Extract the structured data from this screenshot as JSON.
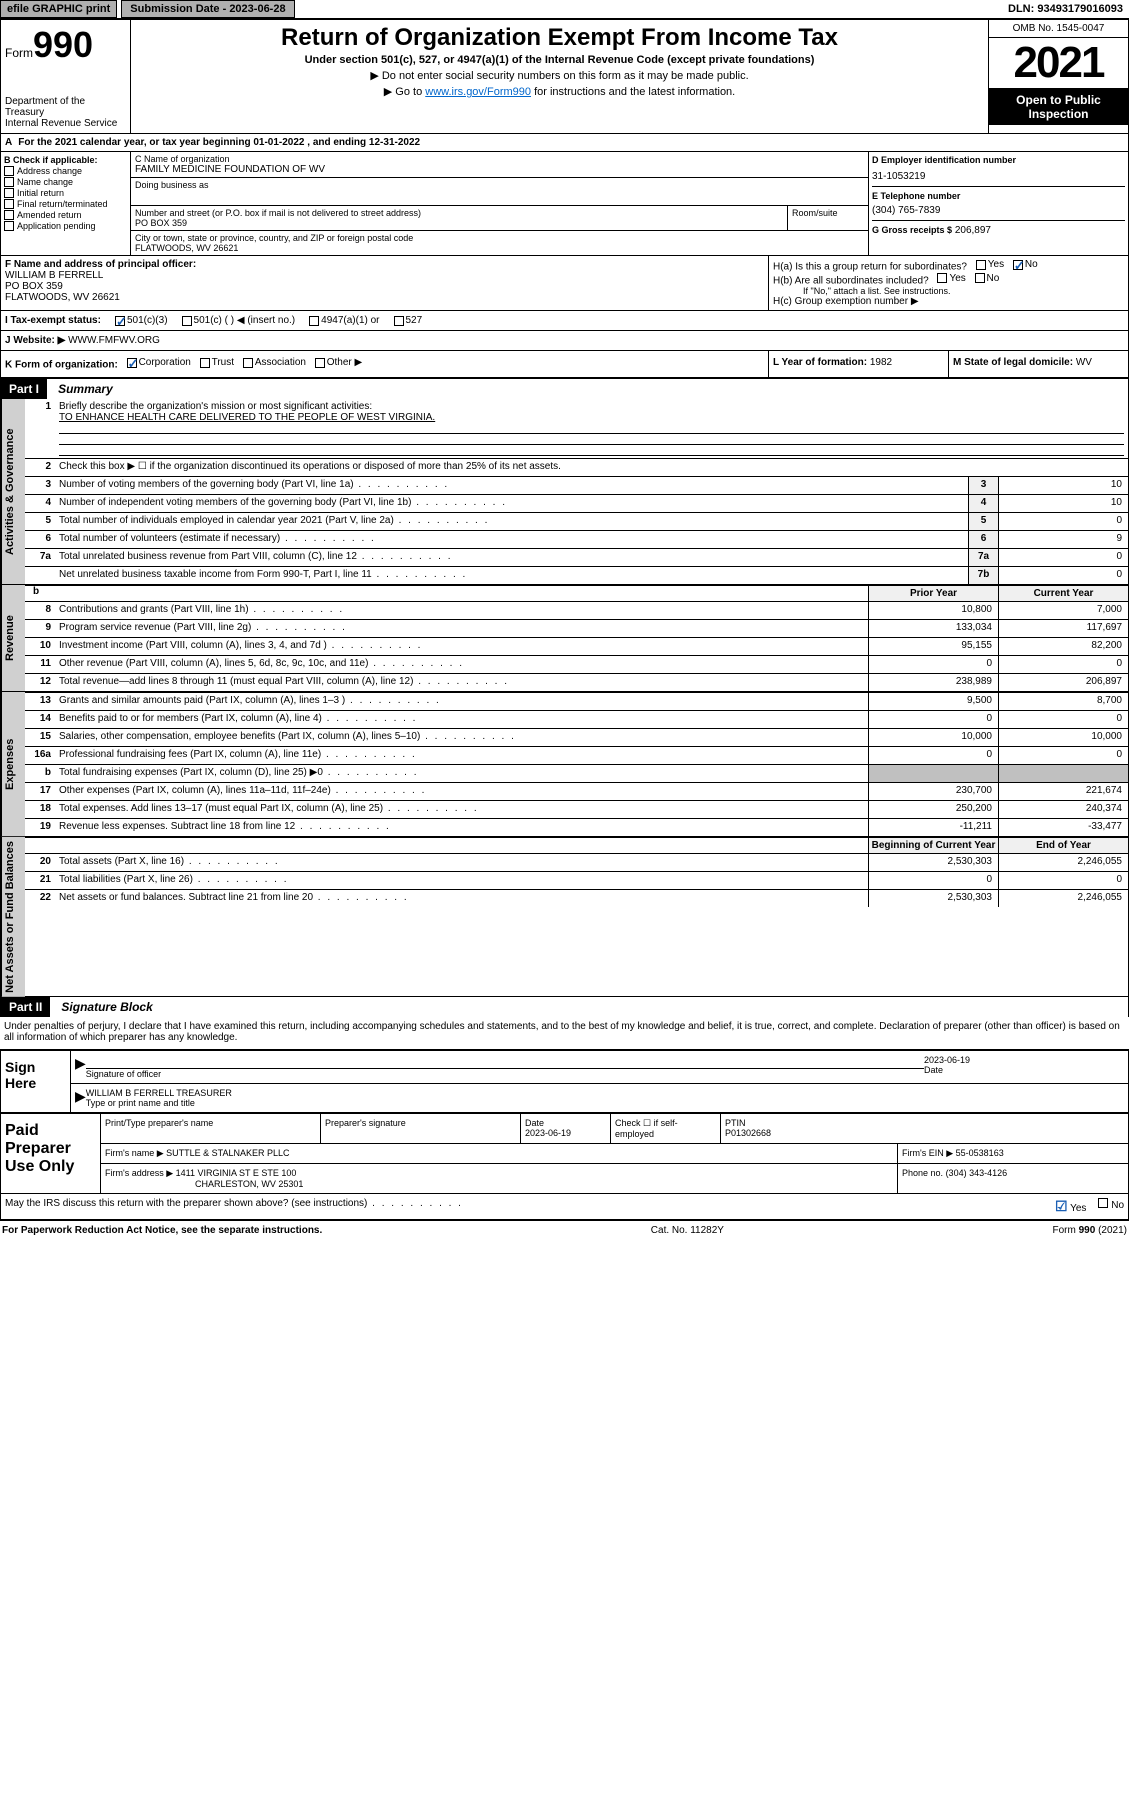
{
  "top": {
    "efile": "efile GRAPHIC print",
    "submission": "Submission Date - 2023-06-28",
    "dln": "DLN: 93493179016093"
  },
  "header": {
    "form_prefix": "Form",
    "form_num": "990",
    "dept": "Department of the Treasury",
    "irs": "Internal Revenue Service",
    "title": "Return of Organization Exempt From Income Tax",
    "subtitle": "Under section 501(c), 527, or 4947(a)(1) of the Internal Revenue Code (except private foundations)",
    "note1": "▶ Do not enter social security numbers on this form as it may be made public.",
    "note2_pre": "▶ Go to ",
    "note2_link": "www.irs.gov/Form990",
    "note2_post": " for instructions and the latest information.",
    "omb": "OMB No. 1545-0047",
    "year": "2021",
    "open_pub": "Open to Public Inspection"
  },
  "rowA": {
    "text": "For the 2021 calendar year, or tax year beginning 01-01-2022   , and ending 12-31-2022"
  },
  "colB": {
    "label": "B Check if applicable:",
    "opts": [
      "Address change",
      "Name change",
      "Initial return",
      "Final return/terminated",
      "Amended return",
      "Application pending"
    ]
  },
  "orgC": {
    "name_lbl": "C Name of organization",
    "name": "FAMILY MEDICINE FOUNDATION OF WV",
    "dba_lbl": "Doing business as",
    "addr_lbl": "Number and street (or P.O. box if mail is not delivered to street address)",
    "room_lbl": "Room/suite",
    "addr": "PO BOX 359",
    "city_lbl": "City or town, state or province, country, and ZIP or foreign postal code",
    "city": "FLATWOODS, WV  26621"
  },
  "colD": {
    "ein_lbl": "D Employer identification number",
    "ein": "31-1053219",
    "tel_lbl": "E Telephone number",
    "tel": "(304) 765-7839",
    "gross_lbl": "G Gross receipts $",
    "gross": "206,897"
  },
  "rowF": {
    "f_lbl": "F  Name and address of principal officer:",
    "name": "WILLIAM B FERRELL",
    "addr1": "PO BOX 359",
    "addr2": "FLATWOODS, WV  26621",
    "ha": "H(a)  Is this a group return for subordinates?",
    "hb": "H(b)  Are all subordinates included?",
    "hb_note": "If \"No,\" attach a list. See instructions.",
    "hc": "H(c)  Group exemption number ▶"
  },
  "status": {
    "i_lbl": "I    Tax-exempt status:",
    "i_501c3": "501(c)(3)",
    "i_501c": "501(c) (  ) ◀ (insert no.)",
    "i_4947": "4947(a)(1) or",
    "i_527": "527",
    "j_lbl": "J   Website: ▶",
    "website": "WWW.FMFWV.ORG"
  },
  "kform": {
    "k_lbl": "K Form of organization:",
    "corp": "Corporation",
    "trust": "Trust",
    "assoc": "Association",
    "other": "Other ▶",
    "l_lbl": "L Year of formation:",
    "l_val": "1982",
    "m_lbl": "M State of legal domicile:",
    "m_val": "WV"
  },
  "part1": {
    "label": "Part I",
    "title": "Summary",
    "vtab_gov": "Activities & Governance",
    "vtab_rev": "Revenue",
    "vtab_exp": "Expenses",
    "vtab_net": "Net Assets or Fund Balances",
    "l1_lbl": "Briefly describe the organization's mission or most significant activities:",
    "l1_val": "TO ENHANCE HEALTH CARE DELIVERED TO THE PEOPLE OF WEST VIRGINIA.",
    "l2": "Check this box ▶ ☐  if the organization discontinued its operations or disposed of more than 25% of its net assets.",
    "lines_gov": [
      {
        "n": "3",
        "d": "Number of voting members of the governing body (Part VI, line 1a)",
        "c": "3",
        "v": "10"
      },
      {
        "n": "4",
        "d": "Number of independent voting members of the governing body (Part VI, line 1b)",
        "c": "4",
        "v": "10"
      },
      {
        "n": "5",
        "d": "Total number of individuals employed in calendar year 2021 (Part V, line 2a)",
        "c": "5",
        "v": "0"
      },
      {
        "n": "6",
        "d": "Total number of volunteers (estimate if necessary)",
        "c": "6",
        "v": "9"
      },
      {
        "n": "7a",
        "d": "Total unrelated business revenue from Part VIII, column (C), line 12",
        "c": "7a",
        "v": "0"
      },
      {
        "n": "",
        "d": "Net unrelated business taxable income from Form 990-T, Part I, line 11",
        "c": "7b",
        "v": "0"
      }
    ],
    "prior_lbl": "Prior Year",
    "current_lbl": "Current Year",
    "lines_rev": [
      {
        "n": "8",
        "d": "Contributions and grants (Part VIII, line 1h)",
        "p": "10,800",
        "c": "7,000"
      },
      {
        "n": "9",
        "d": "Program service revenue (Part VIII, line 2g)",
        "p": "133,034",
        "c": "117,697"
      },
      {
        "n": "10",
        "d": "Investment income (Part VIII, column (A), lines 3, 4, and 7d )",
        "p": "95,155",
        "c": "82,200"
      },
      {
        "n": "11",
        "d": "Other revenue (Part VIII, column (A), lines 5, 6d, 8c, 9c, 10c, and 11e)",
        "p": "0",
        "c": "0"
      },
      {
        "n": "12",
        "d": "Total revenue—add lines 8 through 11 (must equal Part VIII, column (A), line 12)",
        "p": "238,989",
        "c": "206,897"
      }
    ],
    "lines_exp": [
      {
        "n": "13",
        "d": "Grants and similar amounts paid (Part IX, column (A), lines 1–3 )",
        "p": "9,500",
        "c": "8,700"
      },
      {
        "n": "14",
        "d": "Benefits paid to or for members (Part IX, column (A), line 4)",
        "p": "0",
        "c": "0"
      },
      {
        "n": "15",
        "d": "Salaries, other compensation, employee benefits (Part IX, column (A), lines 5–10)",
        "p": "10,000",
        "c": "10,000"
      },
      {
        "n": "16a",
        "d": "Professional fundraising fees (Part IX, column (A), line 11e)",
        "p": "0",
        "c": "0"
      },
      {
        "n": "b",
        "d": "Total fundraising expenses (Part IX, column (D), line 25) ▶0",
        "p": "",
        "c": "",
        "grey": true
      },
      {
        "n": "17",
        "d": "Other expenses (Part IX, column (A), lines 11a–11d, 11f–24e)",
        "p": "230,700",
        "c": "221,674"
      },
      {
        "n": "18",
        "d": "Total expenses. Add lines 13–17 (must equal Part IX, column (A), line 25)",
        "p": "250,200",
        "c": "240,374"
      },
      {
        "n": "19",
        "d": "Revenue less expenses. Subtract line 18 from line 12",
        "p": "-11,211",
        "c": "-33,477"
      }
    ],
    "beg_lbl": "Beginning of Current Year",
    "end_lbl": "End of Year",
    "lines_net": [
      {
        "n": "20",
        "d": "Total assets (Part X, line 16)",
        "p": "2,530,303",
        "c": "2,246,055"
      },
      {
        "n": "21",
        "d": "Total liabilities (Part X, line 26)",
        "p": "0",
        "c": "0"
      },
      {
        "n": "22",
        "d": "Net assets or fund balances. Subtract line 21 from line 20",
        "p": "2,530,303",
        "c": "2,246,055"
      }
    ]
  },
  "part2": {
    "label": "Part II",
    "title": "Signature Block",
    "decl": "Under penalties of perjury, I declare that I have examined this return, including accompanying schedules and statements, and to the best of my knowledge and belief, it is true, correct, and complete. Declaration of preparer (other than officer) is based on all information of which preparer has any knowledge.",
    "sign_here": "Sign Here",
    "sig_officer": "Signature of officer",
    "date_lbl": "Date",
    "date": "2023-06-19",
    "name": "WILLIAM B FERRELL  TREASURER",
    "name_lbl": "Type or print name and title"
  },
  "paid": {
    "label": "Paid Preparer Use Only",
    "print_lbl": "Print/Type preparer's name",
    "sig_lbl": "Preparer's signature",
    "date_lbl": "Date",
    "date": "2023-06-19",
    "check_lbl": "Check ☐ if self-employed",
    "ptin_lbl": "PTIN",
    "ptin": "P01302668",
    "firm_name_lbl": "Firm's name    ▶",
    "firm_name": "SUTTLE & STALNAKER PLLC",
    "firm_ein_lbl": "Firm's EIN ▶",
    "firm_ein": "55-0538163",
    "firm_addr_lbl": "Firm's address ▶",
    "firm_addr1": "1411 VIRGINIA ST E STE 100",
    "firm_addr2": "CHARLESTON, WV  25301",
    "phone_lbl": "Phone no.",
    "phone": "(304) 343-4126"
  },
  "footer": {
    "discuss": "May the IRS discuss this return with the preparer shown above? (see instructions)",
    "paperwork": "For Paperwork Reduction Act Notice, see the separate instructions.",
    "cat": "Cat. No. 11282Y",
    "form": "Form 990 (2021)"
  }
}
